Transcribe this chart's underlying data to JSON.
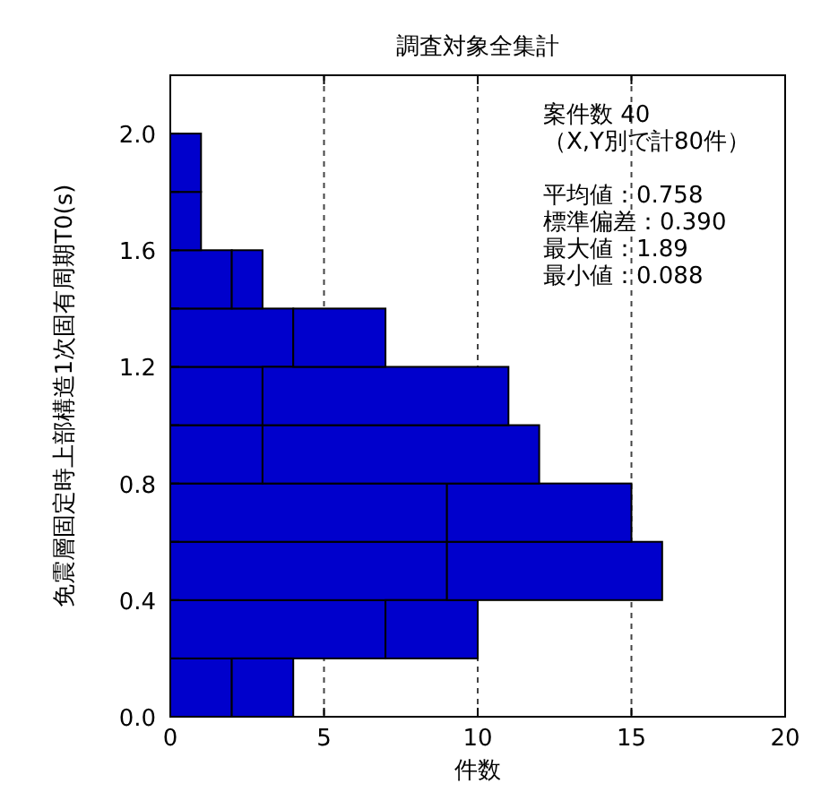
{
  "chart_data": {
    "type": "bar",
    "orientation": "horizontal",
    "stacked": true,
    "title": "調査対象全集計",
    "xlabel": "件数",
    "ylabel": "免震層固定時上部構造1次固有周期T0(s)",
    "x": [
      0.1,
      0.3,
      0.5,
      0.7,
      0.9,
      1.1,
      1.3,
      1.5,
      1.7,
      1.9
    ],
    "series": [
      {
        "color": "#0000cc",
        "values": [
          2,
          7,
          9,
          9,
          3,
          3,
          4,
          2,
          1,
          1
        ]
      },
      {
        "color": "#0000cc",
        "values": [
          2,
          3,
          7,
          6,
          9,
          8,
          3,
          1,
          0,
          0
        ]
      }
    ],
    "xlim": [
      0,
      20
    ],
    "xticks": [
      0,
      5,
      10,
      15,
      20
    ],
    "ylim": [
      0,
      2.2
    ],
    "yticks": [
      {
        "value": 0,
        "label": "0.0"
      },
      {
        "value": 0.2,
        "label": null
      },
      {
        "value": 0.4,
        "label": "0.4"
      },
      {
        "value": 0.6,
        "label": null
      },
      {
        "value": 0.8,
        "label": "0.8"
      },
      {
        "value": 1.0,
        "label": null
      },
      {
        "value": 1.2,
        "label": "1.2"
      },
      {
        "value": 1.4,
        "label": null
      },
      {
        "value": 1.6,
        "label": "1.6"
      },
      {
        "value": 1.8,
        "label": null
      },
      {
        "value": 2.0,
        "label": "2.0"
      }
    ],
    "grid": "x",
    "annotations": [
      "案件数 40",
      "（X,Y別で計80件）",
      "平均値：0.758",
      "標準偏差：0.390",
      "最大値：1.89",
      "最小値：0.088"
    ]
  }
}
